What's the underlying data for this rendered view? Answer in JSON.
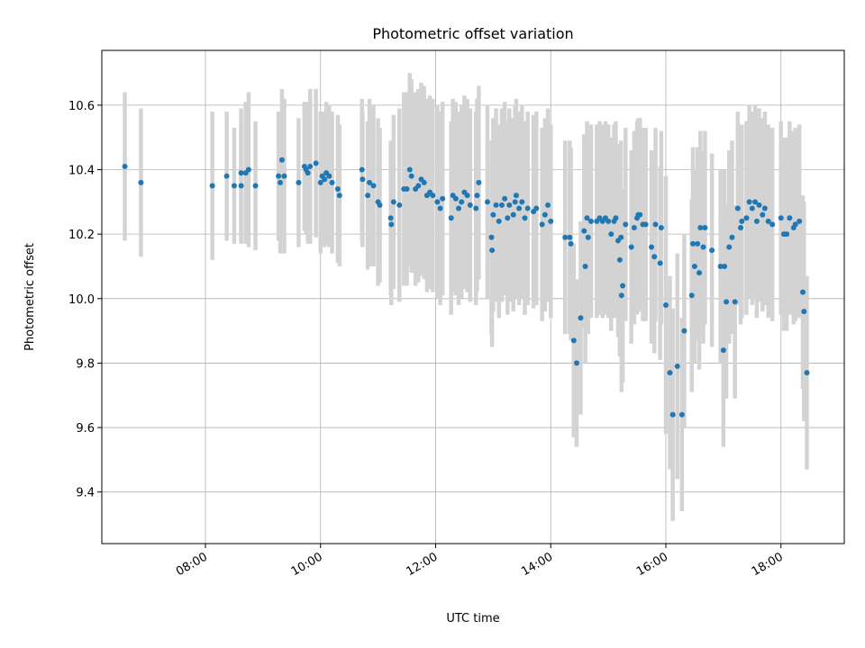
{
  "chart_data": {
    "type": "scatter",
    "title": "Photometric offset variation",
    "xlabel": "UTC time",
    "ylabel": "Photometric offset",
    "x_unit": "hours (UTC)",
    "xlim": [
      6.2,
      19.1
    ],
    "ylim": [
      9.24,
      10.77
    ],
    "x_ticks": [
      {
        "label": "08:00",
        "value": 8
      },
      {
        "label": "10:00",
        "value": 10
      },
      {
        "label": "12:00",
        "value": 12
      },
      {
        "label": "14:00",
        "value": 14
      },
      {
        "label": "16:00",
        "value": 16
      },
      {
        "label": "18:00",
        "value": 18
      }
    ],
    "y_ticks": [
      {
        "label": "9.4",
        "value": 9.4
      },
      {
        "label": "9.6",
        "value": 9.6
      },
      {
        "label": "9.8",
        "value": 9.8
      },
      {
        "label": "10.0",
        "value": 10.0
      },
      {
        "label": "10.2",
        "value": 10.2
      },
      {
        "label": "10.4",
        "value": 10.4
      },
      {
        "label": "10.6",
        "value": 10.6
      }
    ],
    "grid": true,
    "marker_color": "#1f77b4",
    "errorbar_color": "#d3d3d3",
    "points": [
      [
        6.6,
        10.41,
        0.23
      ],
      [
        6.88,
        10.36,
        0.23
      ],
      [
        8.12,
        10.35,
        0.23
      ],
      [
        8.37,
        10.38,
        0.2
      ],
      [
        8.5,
        10.35,
        0.18
      ],
      [
        8.62,
        10.35,
        0.18
      ],
      [
        8.62,
        10.39,
        0.2
      ],
      [
        8.7,
        10.39,
        0.22
      ],
      [
        8.75,
        10.4,
        0.24
      ],
      [
        8.87,
        10.35,
        0.2
      ],
      [
        9.27,
        10.38,
        0.2
      ],
      [
        9.3,
        10.36,
        0.22
      ],
      [
        9.33,
        10.43,
        0.22
      ],
      [
        9.37,
        10.38,
        0.24
      ],
      [
        9.62,
        10.36,
        0.2
      ],
      [
        9.72,
        10.41,
        0.2
      ],
      [
        9.75,
        10.4,
        0.2
      ],
      [
        9.78,
        10.39,
        0.22
      ],
      [
        9.82,
        10.41,
        0.24
      ],
      [
        9.92,
        10.42,
        0.23
      ],
      [
        10.0,
        10.36,
        0.22
      ],
      [
        10.03,
        10.38,
        0.2
      ],
      [
        10.07,
        10.37,
        0.21
      ],
      [
        10.1,
        10.39,
        0.22
      ],
      [
        10.15,
        10.38,
        0.22
      ],
      [
        10.2,
        10.36,
        0.22
      ],
      [
        10.3,
        10.34,
        0.23
      ],
      [
        10.33,
        10.32,
        0.22
      ],
      [
        10.72,
        10.4,
        0.22
      ],
      [
        10.73,
        10.37,
        0.21
      ],
      [
        10.82,
        10.32,
        0.23
      ],
      [
        10.85,
        10.36,
        0.26
      ],
      [
        10.92,
        10.35,
        0.25
      ],
      [
        11.0,
        10.3,
        0.26
      ],
      [
        11.03,
        10.29,
        0.24
      ],
      [
        11.22,
        10.25,
        0.24
      ],
      [
        11.23,
        10.23,
        0.25
      ],
      [
        11.27,
        10.3,
        0.27
      ],
      [
        11.37,
        10.29,
        0.3
      ],
      [
        11.45,
        10.34,
        0.3
      ],
      [
        11.5,
        10.34,
        0.3
      ],
      [
        11.55,
        10.4,
        0.3
      ],
      [
        11.58,
        10.38,
        0.3
      ],
      [
        11.65,
        10.34,
        0.3
      ],
      [
        11.7,
        10.35,
        0.3
      ],
      [
        11.75,
        10.37,
        0.3
      ],
      [
        11.8,
        10.36,
        0.3
      ],
      [
        11.85,
        10.32,
        0.3
      ],
      [
        11.9,
        10.33,
        0.3
      ],
      [
        11.95,
        10.32,
        0.3
      ],
      [
        12.03,
        10.3,
        0.3
      ],
      [
        12.08,
        10.28,
        0.3
      ],
      [
        12.12,
        10.31,
        0.3
      ],
      [
        12.27,
        10.25,
        0.3
      ],
      [
        12.3,
        10.32,
        0.3
      ],
      [
        12.35,
        10.31,
        0.3
      ],
      [
        12.4,
        10.28,
        0.3
      ],
      [
        12.45,
        10.3,
        0.3
      ],
      [
        12.5,
        10.33,
        0.3
      ],
      [
        12.55,
        10.32,
        0.3
      ],
      [
        12.6,
        10.29,
        0.3
      ],
      [
        12.7,
        10.28,
        0.3
      ],
      [
        12.72,
        10.32,
        0.3
      ],
      [
        12.75,
        10.36,
        0.3
      ],
      [
        12.9,
        10.3,
        0.3
      ],
      [
        12.97,
        10.19,
        0.3
      ],
      [
        12.98,
        10.15,
        0.3
      ],
      [
        13.0,
        10.26,
        0.3
      ],
      [
        13.05,
        10.29,
        0.3
      ],
      [
        13.1,
        10.24,
        0.3
      ],
      [
        13.15,
        10.29,
        0.3
      ],
      [
        13.2,
        10.31,
        0.3
      ],
      [
        13.25,
        10.25,
        0.3
      ],
      [
        13.28,
        10.29,
        0.3
      ],
      [
        13.35,
        10.26,
        0.3
      ],
      [
        13.38,
        10.3,
        0.3
      ],
      [
        13.4,
        10.32,
        0.3
      ],
      [
        13.45,
        10.28,
        0.3
      ],
      [
        13.5,
        10.3,
        0.3
      ],
      [
        13.55,
        10.25,
        0.3
      ],
      [
        13.6,
        10.28,
        0.3
      ],
      [
        13.7,
        10.27,
        0.3
      ],
      [
        13.75,
        10.28,
        0.3
      ],
      [
        13.85,
        10.23,
        0.3
      ],
      [
        13.9,
        10.26,
        0.3
      ],
      [
        13.95,
        10.29,
        0.3
      ],
      [
        14.0,
        10.24,
        0.3
      ],
      [
        14.25,
        10.19,
        0.3
      ],
      [
        14.33,
        10.19,
        0.3
      ],
      [
        14.35,
        10.17,
        0.3
      ],
      [
        14.4,
        9.87,
        0.3
      ],
      [
        14.45,
        9.8,
        0.26
      ],
      [
        14.52,
        9.94,
        0.3
      ],
      [
        14.58,
        10.21,
        0.3
      ],
      [
        14.6,
        10.1,
        0.3
      ],
      [
        14.63,
        10.25,
        0.3
      ],
      [
        14.65,
        10.19,
        0.3
      ],
      [
        14.7,
        10.24,
        0.3
      ],
      [
        14.8,
        10.24,
        0.3
      ],
      [
        14.85,
        10.25,
        0.3
      ],
      [
        14.9,
        10.24,
        0.3
      ],
      [
        14.95,
        10.25,
        0.3
      ],
      [
        15.0,
        10.24,
        0.3
      ],
      [
        15.05,
        10.2,
        0.3
      ],
      [
        15.1,
        10.24,
        0.3
      ],
      [
        15.13,
        10.25,
        0.3
      ],
      [
        15.17,
        10.18,
        0.3
      ],
      [
        15.2,
        10.12,
        0.3
      ],
      [
        15.22,
        10.19,
        0.3
      ],
      [
        15.23,
        10.01,
        0.3
      ],
      [
        15.25,
        10.04,
        0.3
      ],
      [
        15.3,
        10.23,
        0.3
      ],
      [
        15.4,
        10.16,
        0.3
      ],
      [
        15.45,
        10.22,
        0.3
      ],
      [
        15.5,
        10.25,
        0.3
      ],
      [
        15.52,
        10.26,
        0.3
      ],
      [
        15.55,
        10.26,
        0.3
      ],
      [
        15.6,
        10.23,
        0.3
      ],
      [
        15.65,
        10.23,
        0.3
      ],
      [
        15.75,
        10.16,
        0.3
      ],
      [
        15.8,
        10.13,
        0.3
      ],
      [
        15.82,
        10.23,
        0.3
      ],
      [
        15.9,
        10.11,
        0.3
      ],
      [
        15.92,
        10.22,
        0.3
      ],
      [
        16.0,
        9.98,
        0.4
      ],
      [
        16.07,
        9.77,
        0.3
      ],
      [
        16.12,
        9.64,
        0.33
      ],
      [
        16.2,
        9.79,
        0.35
      ],
      [
        16.28,
        9.64,
        0.3
      ],
      [
        16.32,
        9.9,
        0.3
      ],
      [
        16.45,
        10.01,
        0.3
      ],
      [
        16.47,
        10.17,
        0.3
      ],
      [
        16.5,
        10.1,
        0.3
      ],
      [
        16.55,
        10.17,
        0.3
      ],
      [
        16.58,
        10.08,
        0.3
      ],
      [
        16.6,
        10.22,
        0.3
      ],
      [
        16.65,
        10.16,
        0.3
      ],
      [
        16.68,
        10.22,
        0.3
      ],
      [
        16.8,
        10.15,
        0.3
      ],
      [
        16.95,
        10.1,
        0.3
      ],
      [
        17.0,
        9.84,
        0.3
      ],
      [
        17.02,
        10.1,
        0.3
      ],
      [
        17.05,
        9.99,
        0.3
      ],
      [
        17.1,
        10.16,
        0.3
      ],
      [
        17.15,
        10.19,
        0.3
      ],
      [
        17.2,
        9.99,
        0.3
      ],
      [
        17.25,
        10.28,
        0.3
      ],
      [
        17.3,
        10.22,
        0.3
      ],
      [
        17.32,
        10.24,
        0.3
      ],
      [
        17.4,
        10.25,
        0.3
      ],
      [
        17.45,
        10.3,
        0.3
      ],
      [
        17.5,
        10.28,
        0.3
      ],
      [
        17.55,
        10.3,
        0.3
      ],
      [
        17.58,
        10.24,
        0.3
      ],
      [
        17.62,
        10.29,
        0.3
      ],
      [
        17.68,
        10.26,
        0.3
      ],
      [
        17.72,
        10.28,
        0.3
      ],
      [
        17.78,
        10.24,
        0.3
      ],
      [
        17.85,
        10.23,
        0.3
      ],
      [
        18.0,
        10.25,
        0.3
      ],
      [
        18.05,
        10.2,
        0.3
      ],
      [
        18.1,
        10.2,
        0.3
      ],
      [
        18.15,
        10.25,
        0.3
      ],
      [
        18.22,
        10.22,
        0.3
      ],
      [
        18.25,
        10.23,
        0.3
      ],
      [
        18.32,
        10.24,
        0.3
      ],
      [
        18.38,
        10.02,
        0.3
      ],
      [
        18.4,
        9.96,
        0.34
      ],
      [
        18.45,
        9.77,
        0.3
      ]
    ]
  }
}
